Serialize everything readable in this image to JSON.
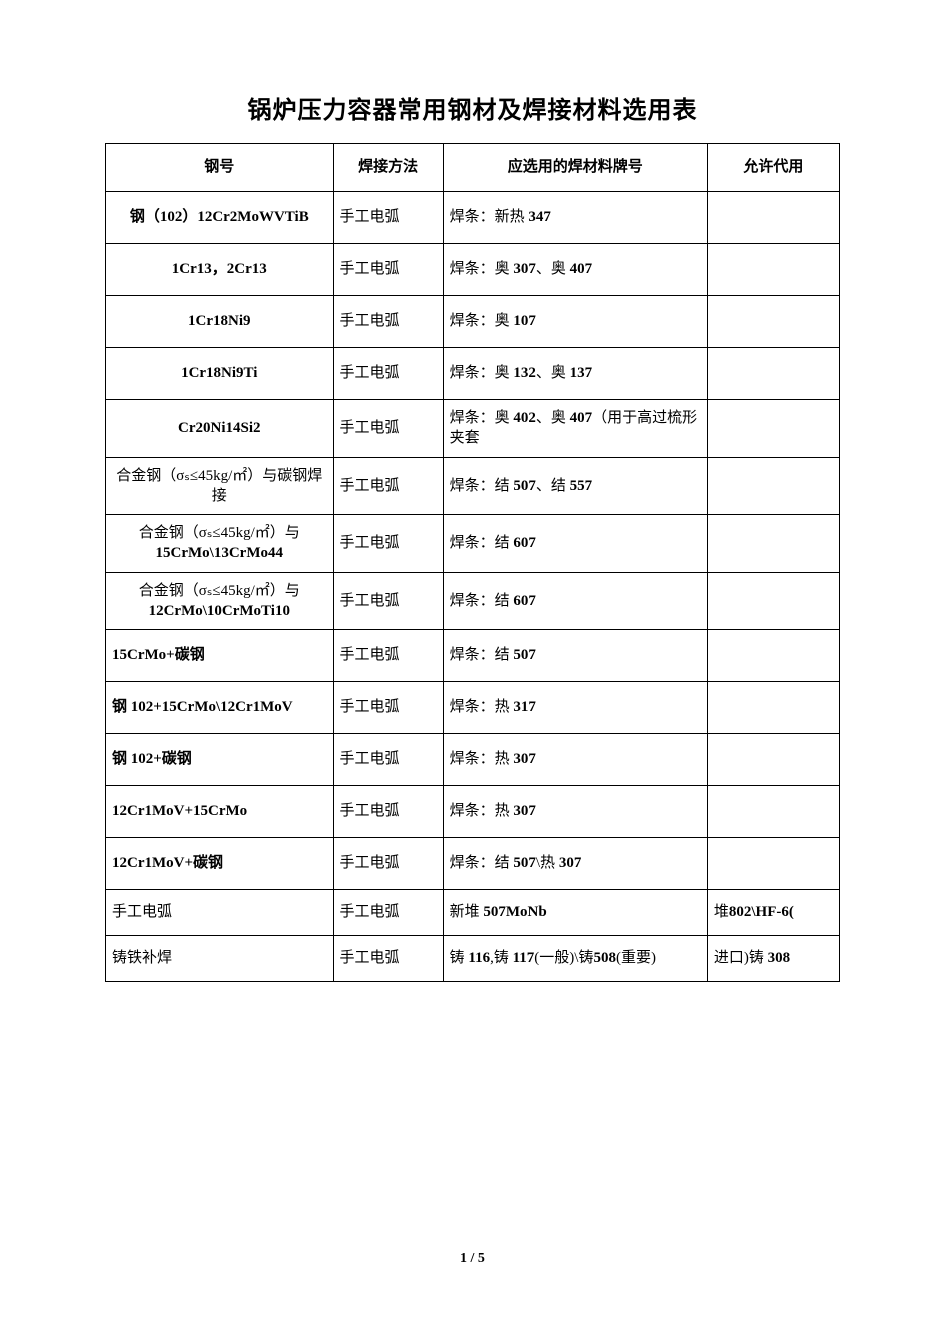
{
  "document": {
    "title": "锅炉压力容器常用钢材及焊接材料选用表",
    "page_footer": "1 / 5",
    "background_color": "#ffffff",
    "text_color": "#000000",
    "border_color": "#000000",
    "title_fontsize": 24,
    "body_fontsize": 15
  },
  "table": {
    "type": "table",
    "columns": [
      {
        "key": "steel_grade",
        "label": "钢号",
        "width_pct": 31,
        "align": "center"
      },
      {
        "key": "weld_method",
        "label": "焊接方法",
        "width_pct": 15,
        "align": "center"
      },
      {
        "key": "material_grade",
        "label": "应选用的焊材料牌号",
        "width_pct": 36,
        "align": "left"
      },
      {
        "key": "allowed_sub",
        "label": "允许代用",
        "width_pct": 18,
        "align": "left"
      }
    ],
    "rows": [
      {
        "steel_grade": "钢（102）12Cr2MoWVTiB",
        "steel_align": "center",
        "steel_bold": true,
        "weld_method": "手工电弧",
        "material_grade": "焊条：新热 347",
        "material_bold_parts": true,
        "allowed_sub": "",
        "row_height": "normal"
      },
      {
        "steel_grade": "1Cr13，2Cr13",
        "steel_align": "center",
        "steel_bold": true,
        "weld_method": "手工电弧",
        "material_grade": "焊条：奥 307、奥 407",
        "material_bold_parts": true,
        "allowed_sub": "",
        "row_height": "normal"
      },
      {
        "steel_grade": "1Cr18Ni9",
        "steel_align": "center",
        "steel_bold": true,
        "weld_method": "手工电弧",
        "material_grade": "焊条：奥 107",
        "material_bold_parts": true,
        "allowed_sub": "",
        "row_height": "normal"
      },
      {
        "steel_grade": "1Cr18Ni9Ti",
        "steel_align": "center",
        "steel_bold": true,
        "weld_method": "手工电弧",
        "material_grade": "焊条：奥 132、奥 137",
        "material_bold_parts": true,
        "allowed_sub": "",
        "row_height": "normal"
      },
      {
        "steel_grade": "Cr20Ni14Si2",
        "steel_align": "center",
        "steel_bold": true,
        "weld_method": "手工电弧",
        "material_grade": "焊条：奥 402、奥 407（用于高过梳形夹套",
        "material_bold_parts": true,
        "allowed_sub": "",
        "row_height": "tight"
      },
      {
        "steel_grade": "合金钢（σₛ≤45kg/㎡）与碳钢焊接",
        "steel_align": "center",
        "steel_bold": false,
        "weld_method": "手工电弧",
        "material_grade": "焊条：结 507、结 557",
        "material_bold_parts": true,
        "allowed_sub": "",
        "row_height": "tight"
      },
      {
        "steel_grade": "合金钢（σₛ≤45kg/㎡）与15CrMo\\13CrMo44",
        "steel_align": "center",
        "steel_bold": false,
        "steel_bold_tail": "15CrMo\\13CrMo44",
        "weld_method": "手工电弧",
        "material_grade": "焊条：结 607",
        "material_bold_parts": true,
        "allowed_sub": "",
        "row_height": "tight"
      },
      {
        "steel_grade": "合金钢（σₛ≤45kg/㎡）与12CrMo\\10CrMoTi10",
        "steel_align": "center",
        "steel_bold": false,
        "steel_bold_tail": "12CrMo\\10CrMoTi10",
        "weld_method": "手工电弧",
        "material_grade": "焊条：结 607",
        "material_bold_parts": true,
        "allowed_sub": "",
        "row_height": "tight"
      },
      {
        "steel_grade": "15CrMo+碳钢",
        "steel_align": "left",
        "steel_bold": true,
        "weld_method": "手工电弧",
        "material_grade": "焊条：结 507",
        "material_bold_parts": true,
        "allowed_sub": "",
        "row_height": "normal"
      },
      {
        "steel_grade": "钢 102+15CrMo\\12Cr1MoV",
        "steel_align": "left",
        "steel_bold": true,
        "weld_method": "手工电弧",
        "material_grade": "焊条：热 317",
        "material_bold_parts": true,
        "allowed_sub": "",
        "row_height": "normal"
      },
      {
        "steel_grade": "钢 102+碳钢",
        "steel_align": "left",
        "steel_bold": true,
        "weld_method": "手工电弧",
        "material_grade": "焊条：热 307",
        "material_bold_parts": true,
        "allowed_sub": "",
        "row_height": "normal"
      },
      {
        "steel_grade": "12Cr1MoV+15CrMo",
        "steel_align": "left",
        "steel_bold": true,
        "weld_method": "手工电弧",
        "material_grade": "焊条：热 307",
        "material_bold_parts": true,
        "allowed_sub": "",
        "row_height": "normal"
      },
      {
        "steel_grade": "12Cr1MoV+碳钢",
        "steel_align": "left",
        "steel_bold": true,
        "weld_method": "手工电弧",
        "material_grade": "焊条：结 507\\热 307",
        "material_bold_parts": true,
        "allowed_sub": "",
        "row_height": "normal"
      },
      {
        "steel_grade": "手工电弧",
        "steel_align": "left",
        "steel_bold": false,
        "weld_method": "手工电弧",
        "material_grade": "新堆 507MoNb",
        "material_bold_parts": true,
        "allowed_sub": "堆802\\HF-6(",
        "row_height": "tight"
      },
      {
        "steel_grade": "铸铁补焊",
        "steel_align": "left",
        "steel_bold": false,
        "weld_method": "手工电弧",
        "material_grade": "铸 116,铸 117(一般)\\铸508(重要)",
        "material_bold_parts": true,
        "allowed_sub": "进口)铸 308",
        "row_height": "tight"
      }
    ]
  }
}
